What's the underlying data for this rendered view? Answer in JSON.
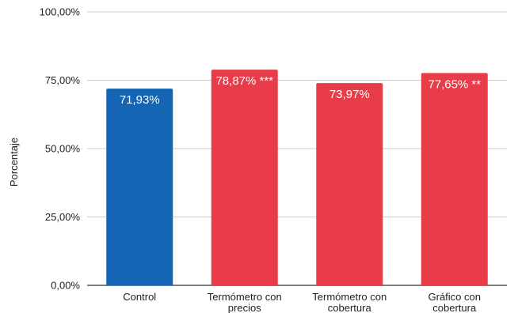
{
  "chart_data": {
    "type": "bar",
    "title": "",
    "xlabel": "",
    "ylabel": "Porcentaje",
    "ylim": [
      0,
      100
    ],
    "yticks": [
      "0,00%",
      "25,00%",
      "50,00%",
      "75,00%",
      "100,00%"
    ],
    "ytick_values": [
      0,
      25,
      50,
      75,
      100
    ],
    "grid": true,
    "categories": [
      [
        "Control"
      ],
      [
        "Termómetro con",
        "precios"
      ],
      [
        "Termómetro con",
        "cobertura"
      ],
      [
        "Gráfico con",
        "cobertura"
      ]
    ],
    "values": [
      71.93,
      78.87,
      73.97,
      77.65
    ],
    "data_labels": [
      "71,93%",
      "78,87% ***",
      "73,97%",
      "77,65% **"
    ],
    "colors": [
      "#1565b5",
      "#e83c48",
      "#e83c48",
      "#e83c48"
    ]
  }
}
